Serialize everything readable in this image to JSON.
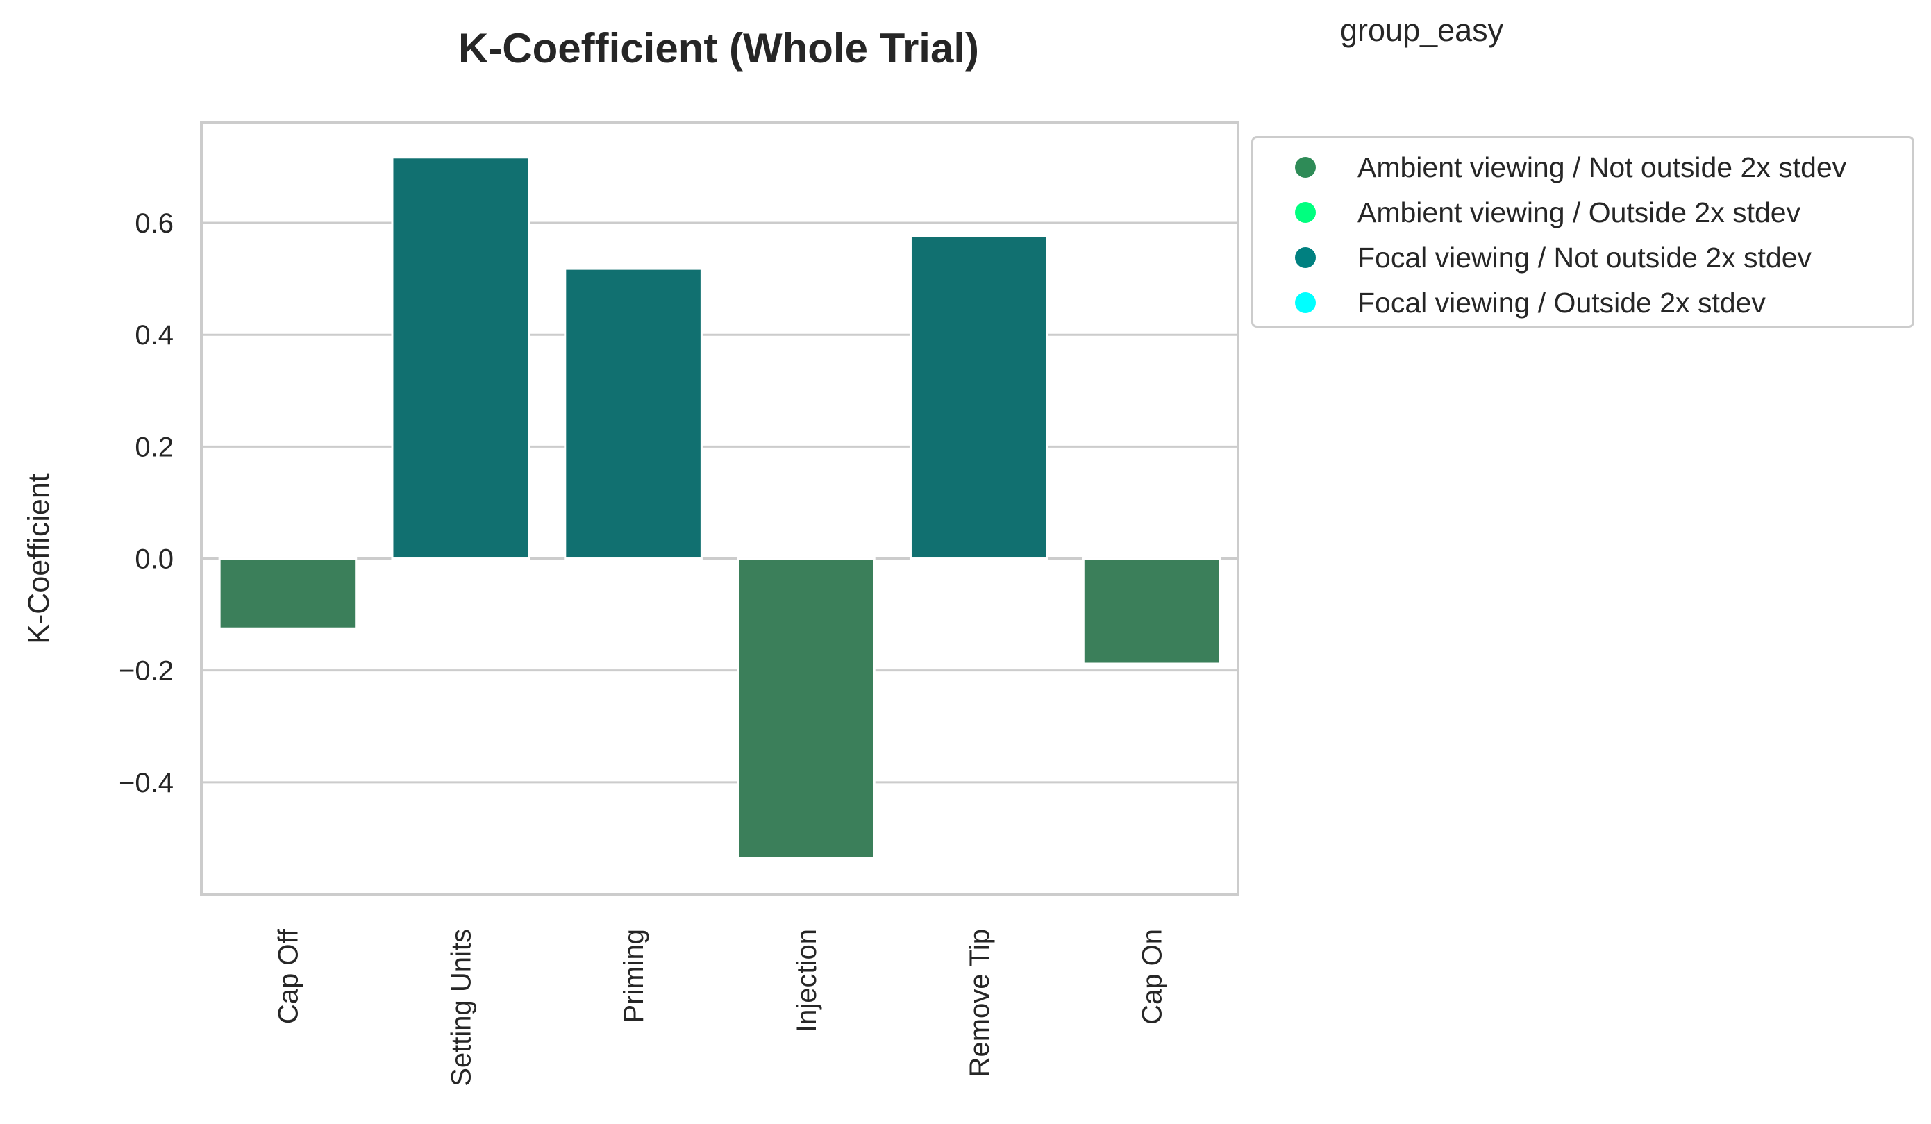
{
  "chart_data": {
    "type": "bar",
    "title": "K-Coefficient (Whole Trial)",
    "subtitle": "group_easy",
    "xlabel": "",
    "ylabel": "K-Coefficient",
    "categories": [
      "Cap Off",
      "Setting Units",
      "Priming",
      "Injection",
      "Remove Tip",
      "Cap On"
    ],
    "values": [
      -0.125,
      0.717,
      0.518,
      -0.535,
      0.576,
      -0.188
    ],
    "bar_series": [
      "Ambient viewing / Not outside 2x stdev",
      "Focal viewing / Not outside 2x stdev",
      "Focal viewing / Not outside 2x stdev",
      "Ambient viewing / Not outside 2x stdev",
      "Focal viewing / Not outside 2x stdev",
      "Ambient viewing / Not outside 2x stdev"
    ],
    "ylim": [
      -0.6,
      0.78
    ],
    "yticks": [
      -0.4,
      -0.2,
      0.0,
      0.2,
      0.4,
      0.6
    ],
    "ytick_labels": [
      "−0.4",
      "−0.2",
      "0.0",
      "0.2",
      "0.4",
      "0.6"
    ],
    "grid": true,
    "legend_position": "outside-top-right",
    "legend": [
      {
        "label": "Ambient viewing / Not outside 2x stdev",
        "color": "#2e8b57"
      },
      {
        "label": "Ambient viewing / Outside 2x stdev",
        "color": "#00ff7f"
      },
      {
        "label": "Focal viewing / Not outside 2x stdev",
        "color": "#008080"
      },
      {
        "label": "Focal viewing / Outside 2x stdev",
        "color": "#00ffff"
      }
    ],
    "bar_colors": {
      "Ambient viewing / Not outside 2x stdev": "#3b7f5a",
      "Focal viewing / Not outside 2x stdev": "#117070"
    }
  }
}
